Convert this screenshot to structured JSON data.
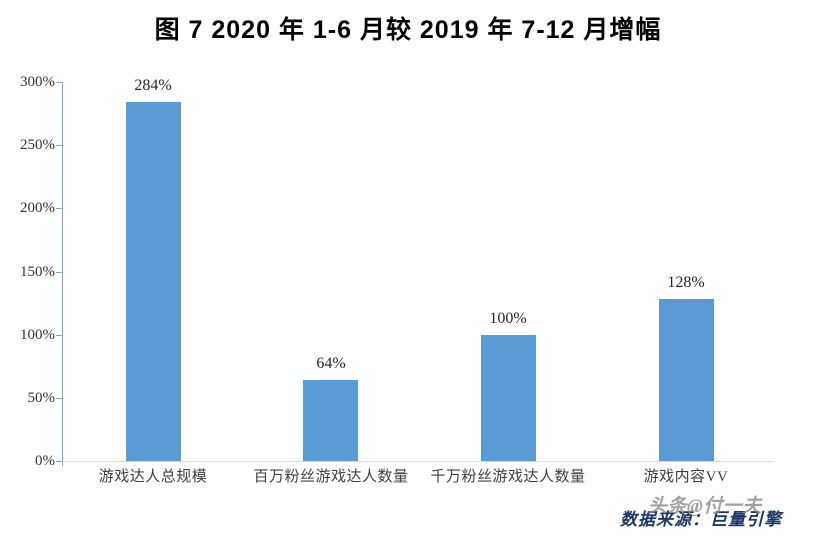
{
  "title": "图 7  2020 年 1-6 月较 2019 年 7-12 月增幅",
  "chart_data": {
    "type": "bar",
    "title": "图 7  2020 年 1-6 月较 2019 年 7-12 月增幅",
    "categories": [
      "游戏达人总规模",
      "百万粉丝游戏达人数量",
      "千万粉丝游戏达人数量",
      "游戏内容VV"
    ],
    "values": [
      284,
      64,
      100,
      128
    ],
    "data_labels": [
      "284%",
      "64%",
      "100%",
      "128%"
    ],
    "xlabel": "",
    "ylabel": "",
    "ylim": [
      0,
      300
    ],
    "y_ticks": [
      {
        "label": "300%",
        "value": 300
      },
      {
        "label": "250%",
        "value": 250
      },
      {
        "label": "200%",
        "value": 200
      },
      {
        "label": "150%",
        "value": 150
      },
      {
        "label": "100%",
        "value": 100
      },
      {
        "label": "50%",
        "value": 50
      },
      {
        "label": "0%",
        "value": 0
      }
    ],
    "grid": false,
    "legend": "none",
    "bar_color": "#5B9BD5",
    "axis_color": "#7EA6CE",
    "baseline_color": "#D9D9D9"
  },
  "footer": {
    "source": "数据来源：巨量引擎",
    "watermark": "头条@付一夫"
  }
}
